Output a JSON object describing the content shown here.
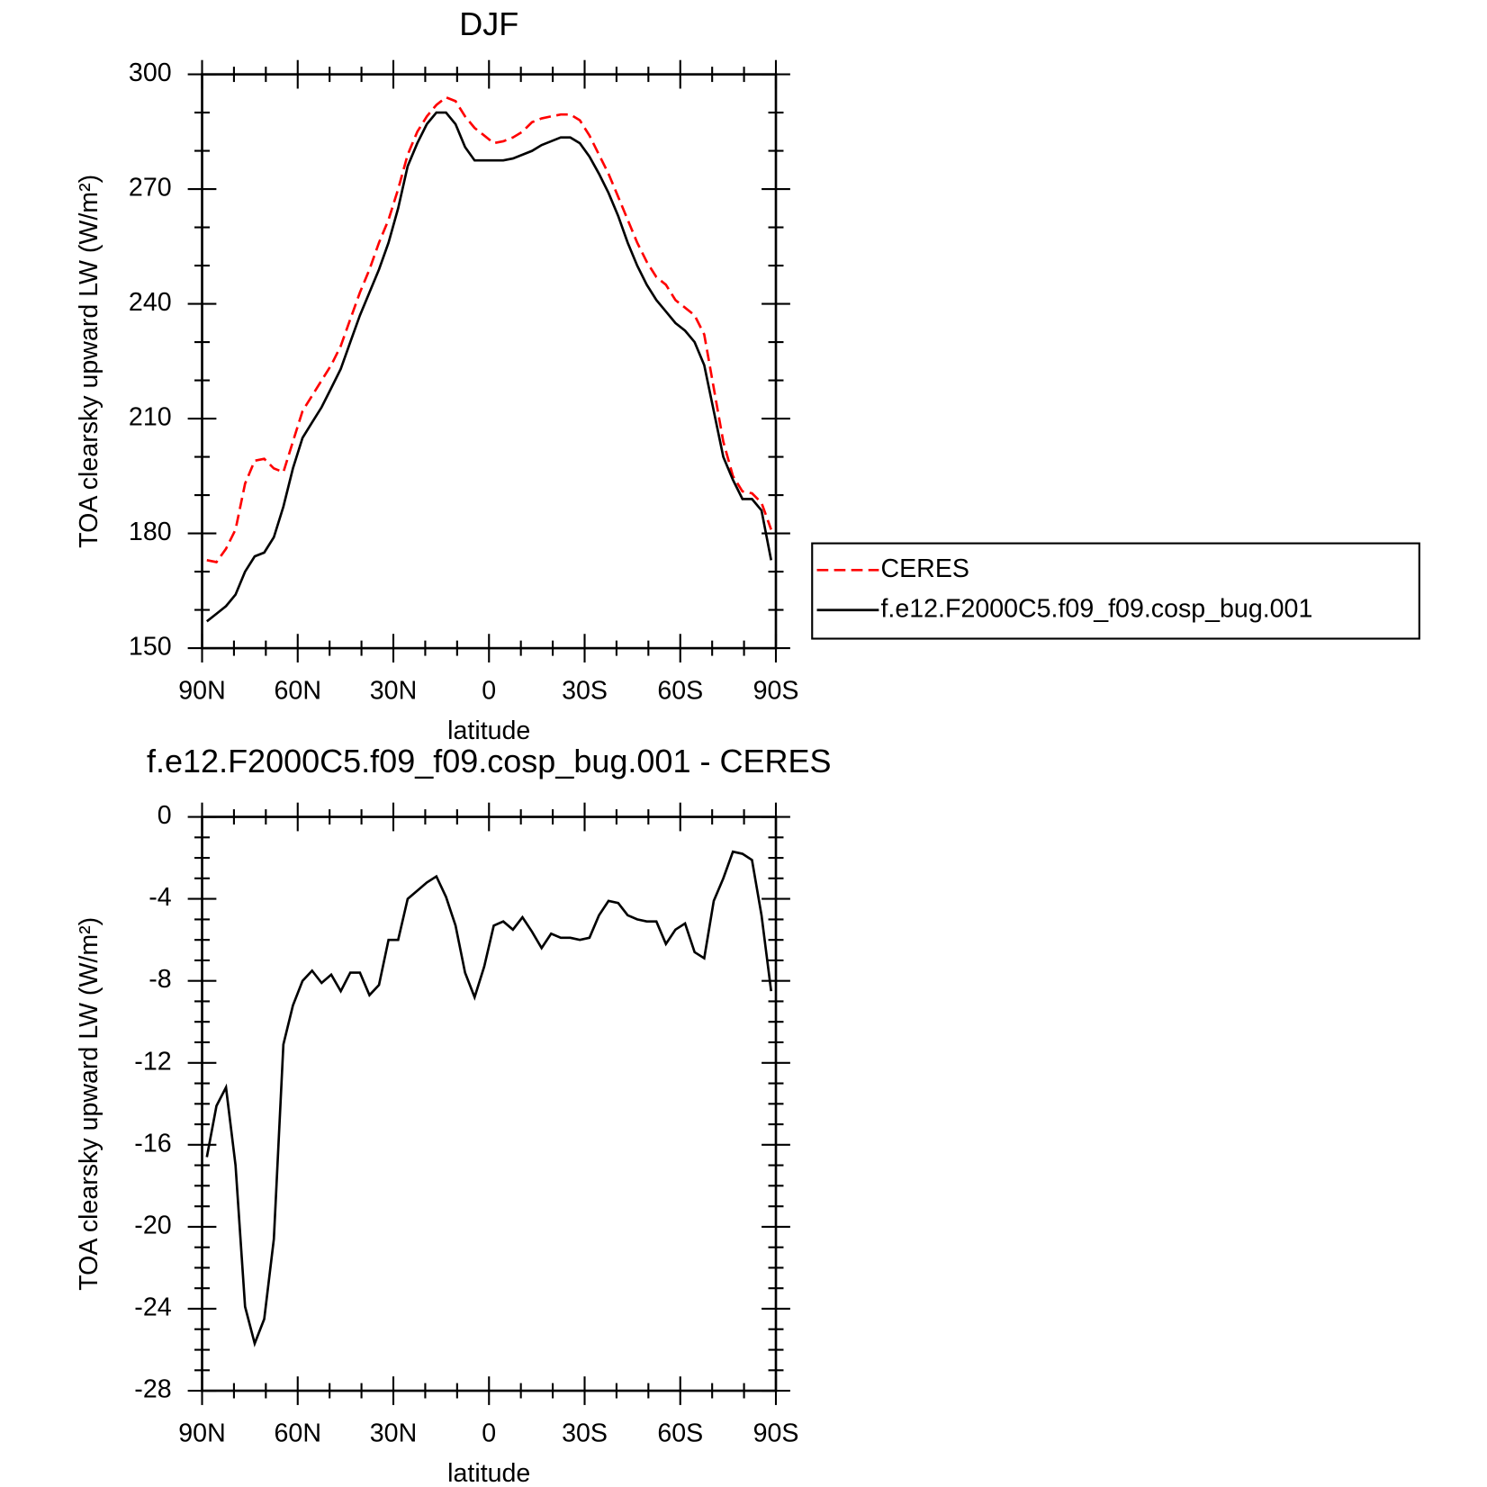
{
  "chart_data": [
    {
      "type": "line",
      "title": "DJF",
      "xlabel": "latitude",
      "ylabel": "TOA clearsky upward LW (W/m²)",
      "x": [
        88.5,
        85.5,
        82.5,
        79.5,
        76.5,
        73.5,
        70.5,
        67.5,
        64.5,
        61.5,
        58.5,
        55.5,
        52.5,
        49.5,
        46.5,
        43.5,
        40.5,
        37.5,
        34.5,
        31.5,
        28.5,
        25.5,
        22.5,
        19.5,
        16.5,
        13.5,
        10.5,
        7.5,
        4.5,
        1.5,
        -1.5,
        -4.5,
        -7.5,
        -10.5,
        -13.5,
        -16.5,
        -19.5,
        -22.5,
        -25.5,
        -28.5,
        -31.5,
        -34.5,
        -37.5,
        -40.5,
        -43.5,
        -46.5,
        -49.5,
        -52.5,
        -55.5,
        -58.5,
        -61.5,
        -64.5,
        -67.5,
        -70.5,
        -73.5,
        -76.5,
        -79.5,
        -82.5,
        -85.5,
        -88.5
      ],
      "series": [
        {
          "name": "CERES",
          "color": "#ff0000",
          "style": "dashed",
          "values": [
            173,
            172.5,
            176,
            181,
            193,
            199,
            199.5,
            197,
            196,
            204,
            212,
            216,
            220,
            224,
            229,
            236,
            243,
            249,
            256,
            262,
            270,
            279,
            285,
            289,
            292,
            294,
            293,
            289,
            286,
            284,
            282,
            282.5,
            283.5,
            285,
            287.5,
            288.5,
            289,
            289.5,
            289.5,
            288,
            284,
            279,
            274,
            268,
            262,
            256,
            251,
            247,
            245,
            241,
            239,
            237,
            232,
            218,
            204,
            195,
            191,
            190.5,
            188,
            181
          ]
        },
        {
          "name": "f.e12.F2000C5.f09_f09.cosp_bug.001",
          "color": "#000000",
          "style": "solid",
          "values": [
            157,
            159,
            161,
            164,
            170,
            174,
            175,
            179,
            187,
            197,
            205,
            209,
            213,
            218,
            223,
            230,
            237,
            243,
            249,
            256,
            265,
            276,
            282,
            287,
            290,
            290,
            287,
            281,
            277.5,
            277.5,
            277.5,
            277.5,
            278,
            279,
            280,
            281.5,
            282.5,
            283.5,
            283.5,
            282,
            278.5,
            274,
            269,
            263,
            256,
            250,
            245,
            241,
            238,
            235,
            233,
            230,
            224,
            212,
            200,
            194,
            189,
            189,
            186,
            173
          ]
        }
      ],
      "xlim": [
        90,
        -90
      ],
      "xticks": [
        {
          "value": 90,
          "label": "90N"
        },
        {
          "value": 60,
          "label": "60N"
        },
        {
          "value": 30,
          "label": "30N"
        },
        0,
        {
          "value": -30,
          "label": "30S"
        },
        {
          "value": -60,
          "label": "60S"
        },
        {
          "value": -90,
          "label": "90S"
        }
      ],
      "ylim": [
        150,
        300
      ],
      "yticks": [
        150,
        180,
        210,
        240,
        270,
        300
      ],
      "legend": "right"
    },
    {
      "type": "line",
      "title": "f.e12.F2000C5.f09_f09.cosp_bug.001 - CERES",
      "xlabel": "latitude",
      "ylabel": "TOA clearsky upward LW (W/m²)",
      "x": [
        88.5,
        85.5,
        82.5,
        79.5,
        76.5,
        73.5,
        70.5,
        67.5,
        64.5,
        61.5,
        58.5,
        55.5,
        52.5,
        49.5,
        46.5,
        43.5,
        40.5,
        37.5,
        34.5,
        31.5,
        28.5,
        25.5,
        22.5,
        19.5,
        16.5,
        13.5,
        10.5,
        7.5,
        4.5,
        1.5,
        -1.5,
        -4.5,
        -7.5,
        -10.5,
        -13.5,
        -16.5,
        -19.5,
        -22.5,
        -25.5,
        -28.5,
        -31.5,
        -34.5,
        -37.5,
        -40.5,
        -43.5,
        -46.5,
        -49.5,
        -52.5,
        -55.5,
        -58.5,
        -61.5,
        -64.5,
        -67.5,
        -70.5,
        -73.5,
        -76.5,
        -79.5,
        -82.5,
        -85.5,
        -88.5
      ],
      "series": [
        {
          "name": "f.e12.F2000C5.f09_f09.cosp_bug.001 - CERES",
          "color": "#000000",
          "style": "solid",
          "values": [
            -16.6,
            -14.1,
            -13.2,
            -17.0,
            -23.9,
            -25.7,
            -24.5,
            -20.6,
            -11.1,
            -9.2,
            -8.0,
            -7.5,
            -8.1,
            -7.7,
            -8.5,
            -7.6,
            -7.6,
            -8.7,
            -8.2,
            -6.0,
            -6.0,
            -4.0,
            -3.6,
            -3.2,
            -2.9,
            -3.9,
            -5.3,
            -7.6,
            -8.8,
            -7.3,
            -5.3,
            -5.1,
            -5.5,
            -4.9,
            -5.6,
            -6.4,
            -5.7,
            -5.9,
            -5.9,
            -6.0,
            -5.9,
            -4.8,
            -4.1,
            -4.2,
            -4.8,
            -5.0,
            -5.1,
            -5.1,
            -6.2,
            -5.5,
            -5.2,
            -6.6,
            -6.9,
            -4.1,
            -3.0,
            -1.7,
            -1.8,
            -2.1,
            -4.8,
            -8.5
          ]
        }
      ],
      "xlim": [
        90,
        -90
      ],
      "xticks": [
        {
          "value": 90,
          "label": "90N"
        },
        {
          "value": 60,
          "label": "60N"
        },
        {
          "value": 30,
          "label": "30N"
        },
        0,
        {
          "value": -30,
          "label": "30S"
        },
        {
          "value": -60,
          "label": "60S"
        },
        {
          "value": -90,
          "label": "90S"
        }
      ],
      "ylim": [
        -28,
        0
      ],
      "yticks": [
        -28,
        -24,
        -20,
        -16,
        -12,
        -8,
        -4,
        0
      ]
    }
  ]
}
